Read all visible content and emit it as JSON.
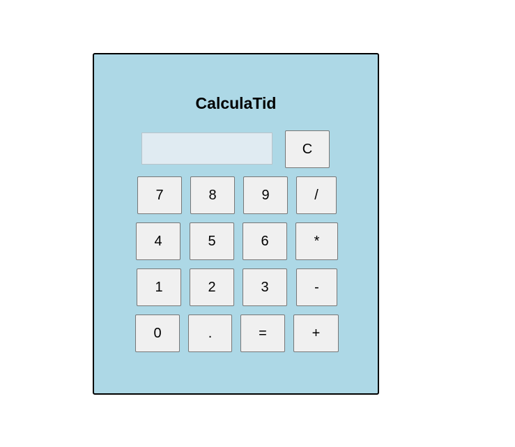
{
  "app": {
    "title": "CalculaTid"
  },
  "display": {
    "value": "",
    "placeholder": ""
  },
  "buttons": {
    "clear": "C",
    "seven": "7",
    "eight": "8",
    "nine": "9",
    "divide": "/",
    "four": "4",
    "five": "5",
    "six": "6",
    "multiply": "*",
    "one": "1",
    "two": "2",
    "three": "3",
    "subtract": "-",
    "zero": "0",
    "decimal": ".",
    "equals": "=",
    "add": "+"
  },
  "colors": {
    "panel_background": "#add8e6",
    "panel_border": "#000000",
    "display_background": "#e0ebf2",
    "button_background": "#f0f0f0",
    "button_border": "#767676"
  }
}
